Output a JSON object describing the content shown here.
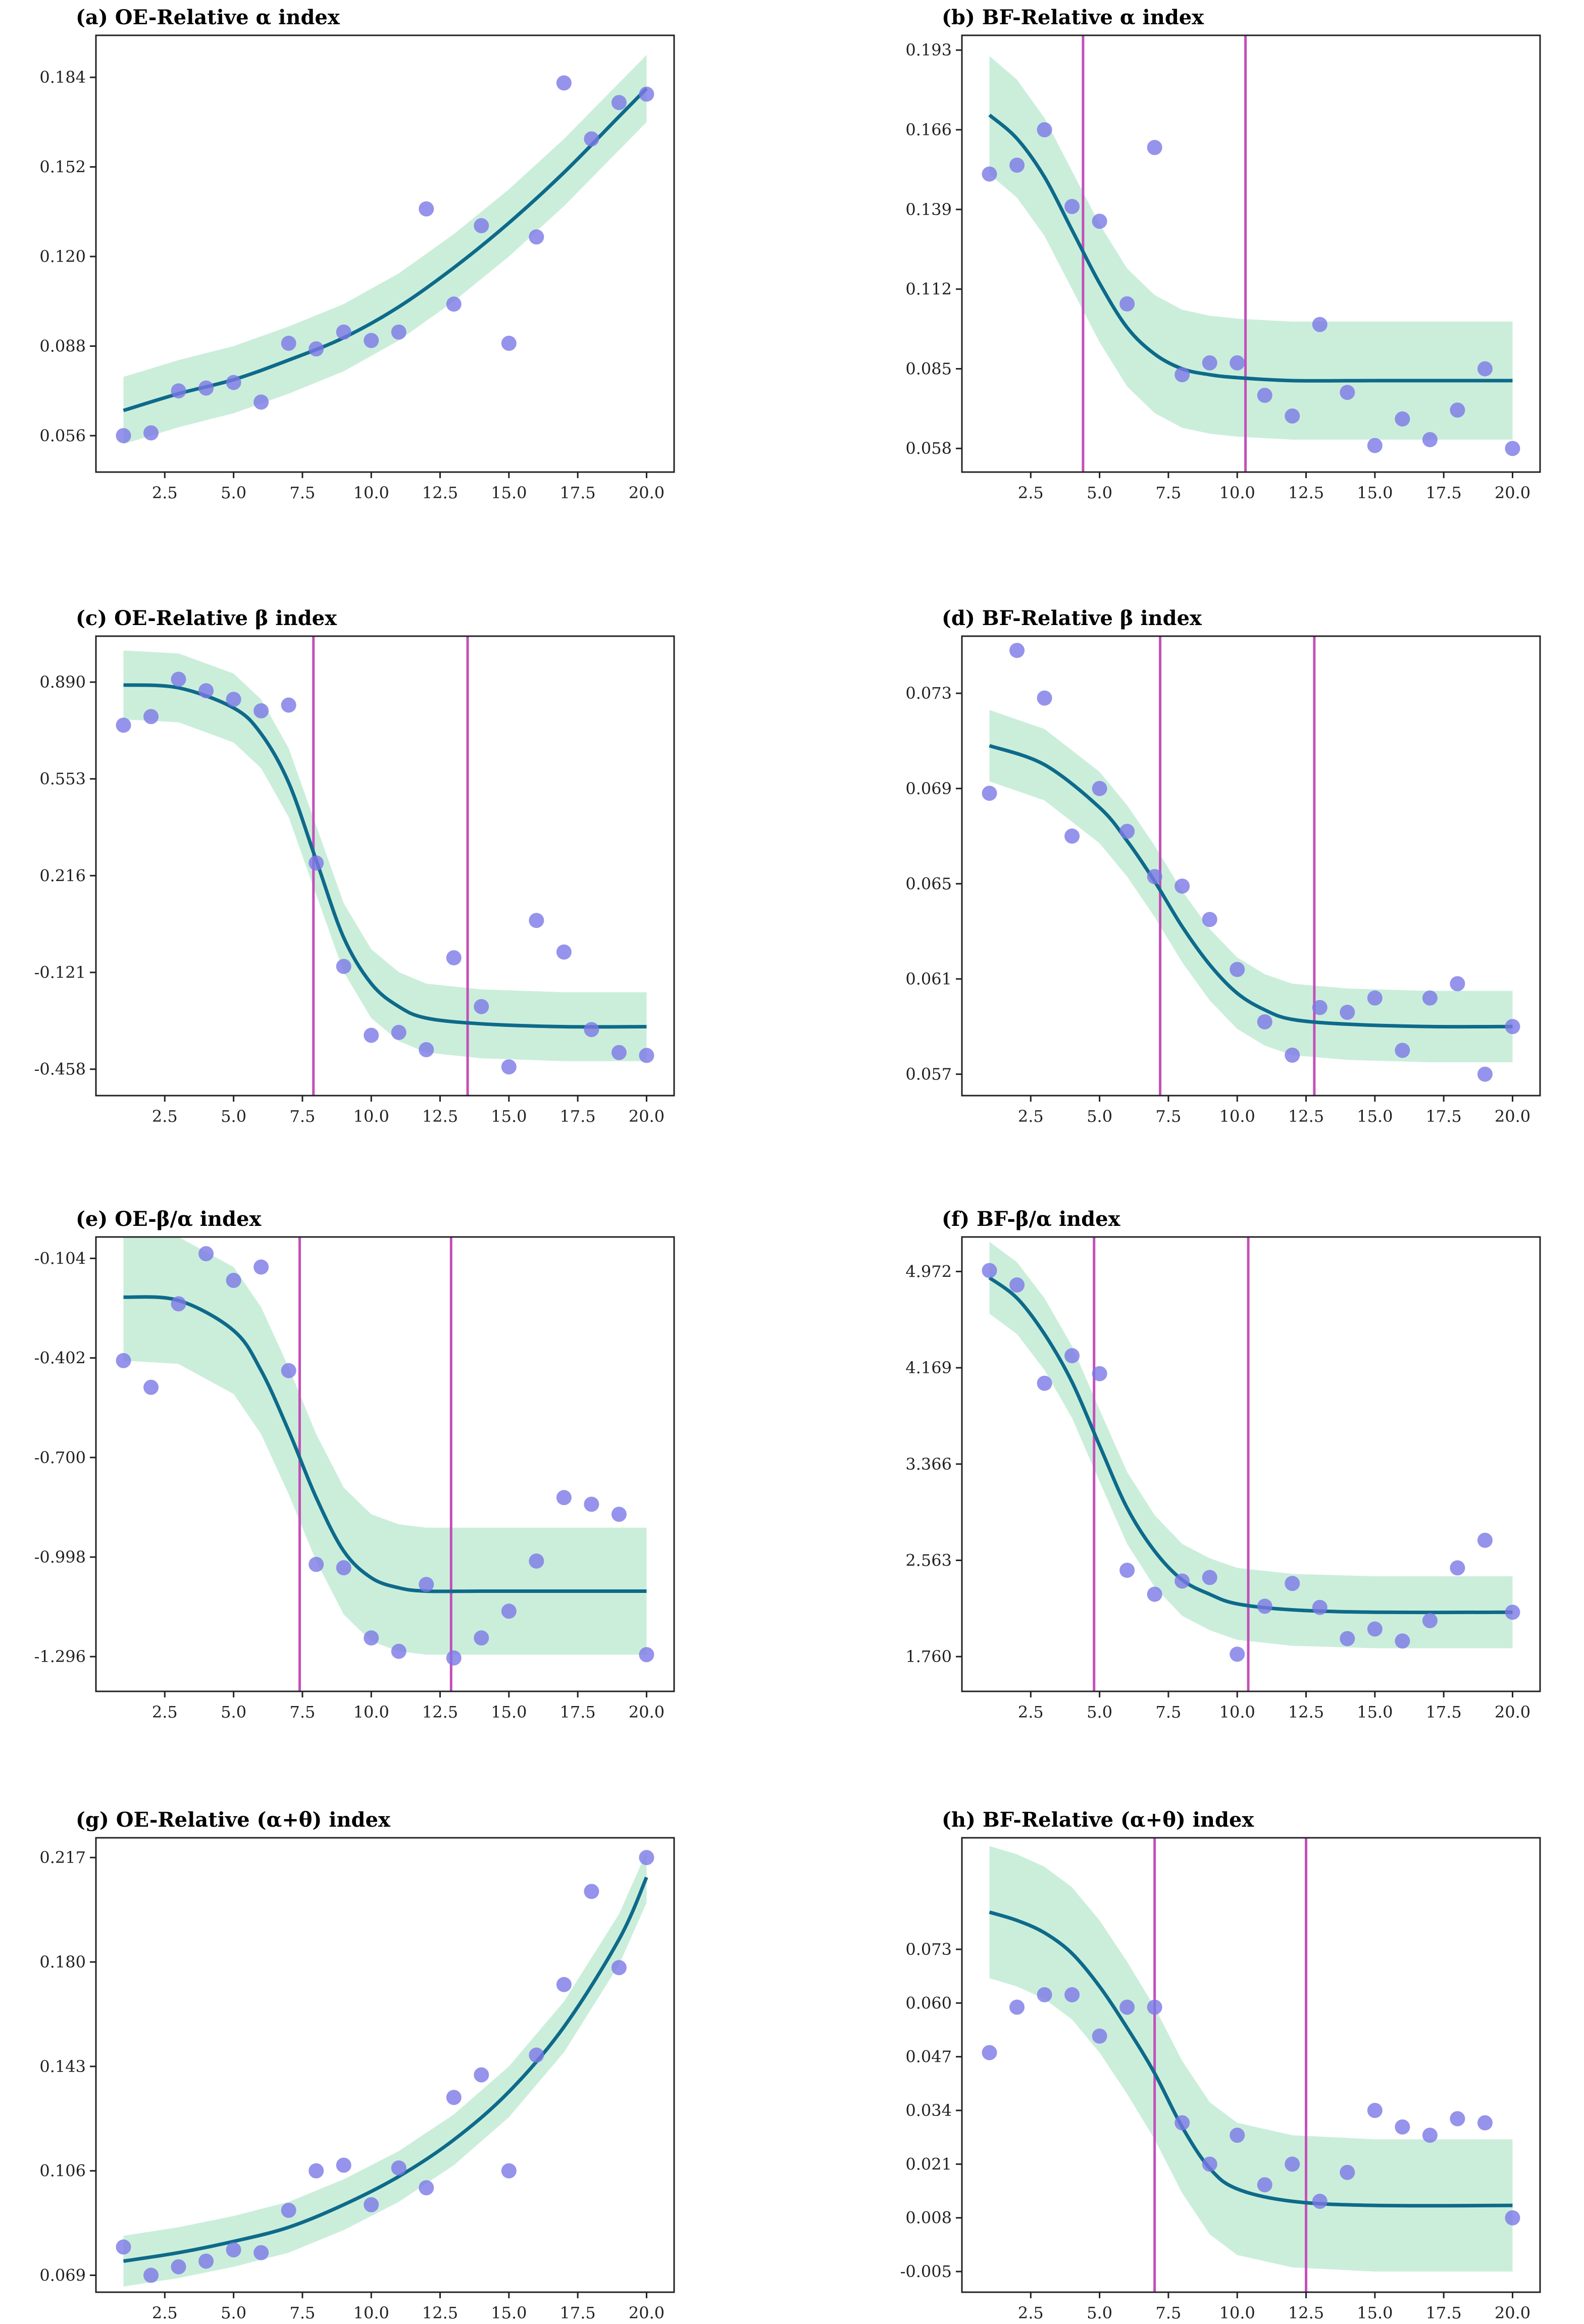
{
  "chart_data": [
    {
      "id": "a",
      "type": "scatter",
      "title": "(a) OE-Relative α index",
      "xlabel": "",
      "ylabel": "",
      "xlim": [
        0,
        21
      ],
      "ylim": [
        0.043,
        0.199
      ],
      "xticks": [
        "2.5",
        "5.0",
        "7.5",
        "10.0",
        "12.5",
        "15.0",
        "17.5",
        "20.0"
      ],
      "yticks": [
        "0.056",
        "0.088",
        "0.120",
        "0.152",
        "0.184"
      ],
      "grid": false,
      "x": [
        1,
        2,
        3,
        4,
        5,
        6,
        7,
        8,
        9,
        10,
        11,
        12,
        13,
        14,
        15,
        16,
        17,
        18,
        19,
        20
      ],
      "y": [
        0.056,
        0.057,
        0.072,
        0.073,
        0.075,
        0.068,
        0.089,
        0.087,
        0.093,
        0.09,
        0.093,
        0.137,
        0.103,
        0.131,
        0.089,
        0.127,
        0.182,
        0.162,
        0.175,
        0.178
      ],
      "fit": {
        "x": [
          1,
          3,
          5,
          7,
          9,
          11,
          13,
          15,
          17,
          19,
          20
        ],
        "y": [
          0.065,
          0.071,
          0.076,
          0.083,
          0.091,
          0.102,
          0.116,
          0.132,
          0.15,
          0.17,
          0.18
        ],
        "band_half_width": 0.012
      },
      "vlines": []
    },
    {
      "id": "b",
      "type": "scatter",
      "title": "(b) BF-Relative α index",
      "xlabel": "",
      "ylabel": "",
      "xlim": [
        0,
        21
      ],
      "ylim": [
        0.05,
        0.198
      ],
      "xticks": [
        "2.5",
        "5.0",
        "7.5",
        "10.0",
        "12.5",
        "15.0",
        "17.5",
        "20.0"
      ],
      "yticks": [
        "0.058",
        "0.085",
        "0.112",
        "0.139",
        "0.166",
        "0.193"
      ],
      "grid": false,
      "x": [
        1,
        2,
        3,
        4,
        5,
        6,
        7,
        8,
        9,
        10,
        11,
        12,
        13,
        14,
        15,
        16,
        17,
        18,
        19,
        20
      ],
      "y": [
        0.151,
        0.154,
        0.166,
        0.14,
        0.135,
        0.107,
        0.16,
        0.083,
        0.087,
        0.087,
        0.076,
        0.069,
        0.1,
        0.077,
        0.059,
        0.068,
        0.061,
        0.071,
        0.085,
        0.058
      ],
      "fit": {
        "x": [
          1,
          2,
          3,
          4,
          5,
          6,
          7,
          8,
          9,
          10,
          12,
          15,
          20
        ],
        "y": [
          0.171,
          0.163,
          0.15,
          0.132,
          0.114,
          0.099,
          0.09,
          0.085,
          0.083,
          0.082,
          0.081,
          0.081,
          0.081
        ],
        "band_half_width": 0.02
      },
      "vlines": [
        4.4,
        10.3
      ]
    },
    {
      "id": "c",
      "type": "scatter",
      "title": "(c) OE-Relative β index",
      "xlabel": "",
      "ylabel": "",
      "xlim": [
        0,
        21
      ],
      "ylim": [
        -0.55,
        1.05
      ],
      "xticks": [
        "2.5",
        "5.0",
        "7.5",
        "10.0",
        "12.5",
        "15.0",
        "17.5",
        "20.0"
      ],
      "yticks": [
        "0.890",
        "0.553",
        "0.216",
        "-0.121",
        "-0.458"
      ],
      "grid": false,
      "x": [
        1,
        2,
        3,
        4,
        5,
        6,
        7,
        8,
        9,
        10,
        11,
        12,
        13,
        14,
        15,
        16,
        17,
        18,
        19,
        20
      ],
      "y": [
        0.74,
        0.77,
        0.9,
        0.86,
        0.83,
        0.79,
        0.81,
        0.26,
        -0.1,
        -0.34,
        -0.33,
        -0.39,
        -0.07,
        -0.24,
        -0.45,
        0.06,
        -0.05,
        -0.32,
        -0.4,
        -0.41
      ],
      "fit": {
        "x": [
          1,
          3,
          5,
          6,
          7,
          8,
          9,
          10,
          11,
          12,
          14,
          17,
          20
        ],
        "y": [
          0.88,
          0.87,
          0.8,
          0.71,
          0.54,
          0.27,
          0.0,
          -0.16,
          -0.24,
          -0.28,
          -0.3,
          -0.31,
          -0.31
        ],
        "band_half_width": 0.12
      },
      "vlines": [
        7.9,
        13.5
      ]
    },
    {
      "id": "d",
      "type": "scatter",
      "title": "(d) BF-Relative β index",
      "xlabel": "",
      "ylabel": "",
      "xlim": [
        0,
        21
      ],
      "ylim": [
        0.0561,
        0.0754
      ],
      "xticks": [
        "2.5",
        "5.0",
        "7.5",
        "10.0",
        "12.5",
        "15.0",
        "17.5",
        "20.0"
      ],
      "yticks": [
        "0.073",
        "0.069",
        "0.065",
        "0.061",
        "0.057"
      ],
      "grid": false,
      "x": [
        1,
        2,
        3,
        4,
        5,
        6,
        7,
        8,
        9,
        10,
        11,
        12,
        13,
        14,
        15,
        16,
        17,
        18,
        19,
        20
      ],
      "y": [
        0.0688,
        0.0748,
        0.0728,
        0.067,
        0.069,
        0.0672,
        0.0653,
        0.0649,
        0.0635,
        0.0614,
        0.0592,
        0.0578,
        0.0598,
        0.0596,
        0.0602,
        0.058,
        0.0602,
        0.0608,
        0.057,
        0.059
      ],
      "fit": {
        "x": [
          1,
          3,
          5,
          6,
          7,
          8,
          9,
          10,
          11,
          12,
          14,
          17,
          20
        ],
        "y": [
          0.0708,
          0.07,
          0.0682,
          0.0668,
          0.0651,
          0.0632,
          0.0616,
          0.0604,
          0.0597,
          0.0593,
          0.0591,
          0.059,
          0.059
        ],
        "band_half_width": 0.0015
      },
      "vlines": [
        7.2,
        12.8
      ]
    },
    {
      "id": "e",
      "type": "scatter",
      "title": "(e) OE-β/α index",
      "xlabel": "",
      "ylabel": "",
      "xlim": [
        0,
        21
      ],
      "ylim": [
        -1.4,
        -0.04
      ],
      "xticks": [
        "2.5",
        "5.0",
        "7.5",
        "10.0",
        "12.5",
        "15.0",
        "17.5",
        "20.0"
      ],
      "yticks": [
        "-0.104",
        "-0.402",
        "-0.700",
        "-0.998",
        "-1.296"
      ],
      "grid": false,
      "x": [
        1,
        2,
        3,
        4,
        5,
        6,
        7,
        8,
        9,
        10,
        11,
        12,
        13,
        14,
        15,
        16,
        17,
        18,
        19,
        20
      ],
      "y": [
        -0.41,
        -0.49,
        -0.24,
        -0.09,
        -0.17,
        -0.13,
        -0.44,
        -1.02,
        -1.03,
        -1.24,
        -1.28,
        -1.08,
        -1.3,
        -1.24,
        -1.16,
        -1.01,
        -0.82,
        -0.84,
        -0.87,
        -1.29
      ],
      "fit": {
        "x": [
          1,
          3,
          5,
          6,
          7,
          8,
          9,
          10,
          11,
          12,
          14,
          17,
          20
        ],
        "y": [
          -0.22,
          -0.23,
          -0.32,
          -0.44,
          -0.62,
          -0.82,
          -0.98,
          -1.06,
          -1.09,
          -1.1,
          -1.1,
          -1.1,
          -1.1
        ],
        "band_half_width": 0.19
      },
      "vlines": [
        7.4,
        12.9
      ]
    },
    {
      "id": "f",
      "type": "scatter",
      "title": "(f) BF-β/α index",
      "xlabel": "",
      "ylabel": "",
      "xlim": [
        0,
        21
      ],
      "ylim": [
        1.47,
        5.26
      ],
      "xticks": [
        "2.5",
        "5.0",
        "7.5",
        "10.0",
        "12.5",
        "15.0",
        "17.5",
        "20.0"
      ],
      "yticks": [
        "4.972",
        "4.169",
        "3.366",
        "2.563",
        "1.760"
      ],
      "grid": false,
      "x": [
        1,
        2,
        3,
        4,
        5,
        6,
        7,
        8,
        9,
        10,
        11,
        12,
        13,
        14,
        15,
        16,
        17,
        18,
        19,
        20
      ],
      "y": [
        4.98,
        4.86,
        4.04,
        4.27,
        4.12,
        2.48,
        2.28,
        2.39,
        2.42,
        1.78,
        2.18,
        2.37,
        2.17,
        1.91,
        1.99,
        1.89,
        2.06,
        2.5,
        2.73,
        2.13
      ],
      "fit": {
        "x": [
          1,
          2,
          3,
          4,
          5,
          6,
          7,
          8,
          9,
          10,
          12,
          15,
          20
        ],
        "y": [
          4.92,
          4.75,
          4.45,
          4.05,
          3.52,
          3.0,
          2.64,
          2.4,
          2.28,
          2.2,
          2.15,
          2.13,
          2.13
        ],
        "band_half_width": 0.3
      },
      "vlines": [
        4.8,
        10.4
      ]
    },
    {
      "id": "g",
      "type": "scatter",
      "title": "(g) OE-Relative (α+θ) index",
      "xlabel": "",
      "ylabel": "",
      "xlim": [
        0,
        21
      ],
      "ylim": [
        0.063,
        0.224
      ],
      "xticks": [
        "2.5",
        "5.0",
        "7.5",
        "10.0",
        "12.5",
        "15.0",
        "17.5",
        "20.0"
      ],
      "yticks": [
        "0.217",
        "0.180",
        "0.143",
        "0.106",
        "0.069"
      ],
      "grid": false,
      "x": [
        1,
        2,
        3,
        4,
        5,
        6,
        7,
        8,
        9,
        10,
        11,
        12,
        13,
        14,
        15,
        16,
        17,
        18,
        19,
        20
      ],
      "y": [
        0.079,
        0.069,
        0.072,
        0.074,
        0.078,
        0.077,
        0.092,
        0.106,
        0.108,
        0.094,
        0.107,
        0.1,
        0.132,
        0.14,
        0.106,
        0.147,
        0.172,
        0.205,
        0.178,
        0.217
      ],
      "fit": {
        "x": [
          1,
          3,
          5,
          7,
          9,
          11,
          13,
          15,
          17,
          19,
          20
        ],
        "y": [
          0.074,
          0.077,
          0.081,
          0.086,
          0.094,
          0.104,
          0.117,
          0.134,
          0.157,
          0.188,
          0.21
        ],
        "band_half_width": 0.009
      },
      "vlines": []
    },
    {
      "id": "h",
      "type": "scatter",
      "title": "(h) BF-Relative (α+θ) index",
      "xlabel": "",
      "ylabel": "",
      "xlim": [
        0,
        21
      ],
      "ylim": [
        -0.01,
        0.1
      ],
      "xticks": [
        "2.5",
        "5.0",
        "7.5",
        "10.0",
        "12.5",
        "15.0",
        "17.5",
        "20.0"
      ],
      "yticks": [
        "0.073",
        "0.060",
        "0.047",
        "0.034",
        "0.021",
        "0.008",
        "-0.005"
      ],
      "grid": false,
      "x": [
        1,
        2,
        3,
        4,
        5,
        6,
        7,
        8,
        9,
        10,
        11,
        12,
        13,
        14,
        15,
        16,
        17,
        18,
        19,
        20
      ],
      "y": [
        0.048,
        0.059,
        0.062,
        0.062,
        0.052,
        0.059,
        0.059,
        0.031,
        0.021,
        0.028,
        0.016,
        0.021,
        0.012,
        0.019,
        0.034,
        0.03,
        0.028,
        0.032,
        0.031,
        0.008
      ],
      "fit": {
        "x": [
          1,
          2,
          3,
          4,
          5,
          6,
          7,
          8,
          9,
          10,
          12,
          15,
          20
        ],
        "y": [
          0.082,
          0.08,
          0.077,
          0.072,
          0.064,
          0.054,
          0.043,
          0.03,
          0.02,
          0.015,
          0.012,
          0.011,
          0.011
        ],
        "band_half_width": 0.016
      },
      "vlines": [
        7.0,
        12.5
      ]
    }
  ]
}
